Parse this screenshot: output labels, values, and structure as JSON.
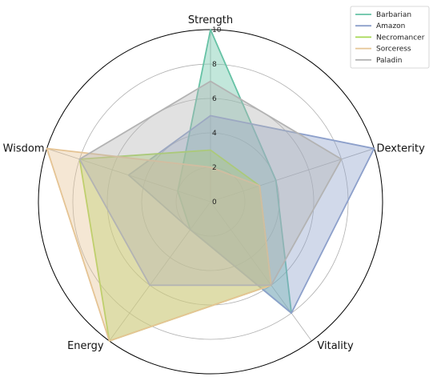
{
  "chart_data": {
    "type": "radar",
    "axes": [
      "Strength",
      "Dexterity",
      "Vitality",
      "Energy",
      "Wisdom"
    ],
    "rlim": [
      0,
      10
    ],
    "r_ticks": [
      0,
      2,
      4,
      6,
      8,
      10
    ],
    "r_tick_labels": [
      "0",
      "2",
      "4",
      "6",
      "8",
      "10"
    ],
    "grid": true,
    "legend_placement": "top-right",
    "series": [
      {
        "name": "Barbarian",
        "color": "#66c2a5",
        "values": [
          10,
          4,
          8,
          2,
          2
        ]
      },
      {
        "name": "Amazon",
        "color": "#8da0cb",
        "values": [
          5,
          10,
          8,
          2,
          5
        ]
      },
      {
        "name": "Necromancer",
        "color": "#a6d854",
        "values": [
          3,
          3,
          6,
          10,
          8
        ]
      },
      {
        "name": "Sorceress",
        "color": "#e5c494",
        "values": [
          2,
          3,
          6,
          10,
          10
        ]
      },
      {
        "name": "Paladin",
        "color": "#b3b3b3",
        "values": [
          7,
          8,
          6,
          6,
          8
        ]
      }
    ]
  }
}
